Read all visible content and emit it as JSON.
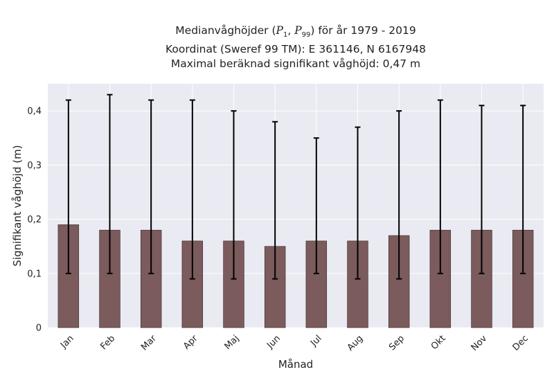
{
  "chart_data": {
    "type": "bar",
    "title_lines": {
      "line1_prefix": "Medianvåghöjder (",
      "p_low_symbol": "P",
      "p_low_sub": "1",
      "p_sep": ", ",
      "p_high_symbol": "P",
      "p_high_sub": "99",
      "line1_suffix": ") för år 1979 - 2019",
      "line2": "Koordinat (Sweref 99 TM): E 361146, N 6167948",
      "line3": "Maximal beräknad signifikant våghöjd: 0,47 m"
    },
    "xlabel": "Månad",
    "ylabel": "Signifikant våghöjd (m)",
    "categories": [
      "Jan",
      "Feb",
      "Mar",
      "Apr",
      "Maj",
      "Jun",
      "Jul",
      "Aug",
      "Sep",
      "Okt",
      "Nov",
      "Dec"
    ],
    "values": [
      0.19,
      0.18,
      0.18,
      0.16,
      0.16,
      0.15,
      0.16,
      0.16,
      0.17,
      0.18,
      0.18,
      0.18
    ],
    "p1": [
      0.1,
      0.1,
      0.1,
      0.09,
      0.09,
      0.09,
      0.1,
      0.09,
      0.09,
      0.1,
      0.1,
      0.1
    ],
    "p99": [
      0.42,
      0.43,
      0.42,
      0.42,
      0.4,
      0.38,
      0.35,
      0.37,
      0.4,
      0.42,
      0.41,
      0.41
    ],
    "ylim": [
      0,
      0.45
    ],
    "yticks": [
      0,
      0.1,
      0.2,
      0.3,
      0.4
    ],
    "ytick_labels": [
      "0",
      "0,1",
      "0,2",
      "0,3",
      "0,4"
    ],
    "grid": true,
    "colors": {
      "bar": "#7b5b5c",
      "bar_edge": "#3a2a2a",
      "error_bar": "#000000",
      "plot_bg": "#eaeaf2",
      "grid": "#ffffff"
    }
  }
}
